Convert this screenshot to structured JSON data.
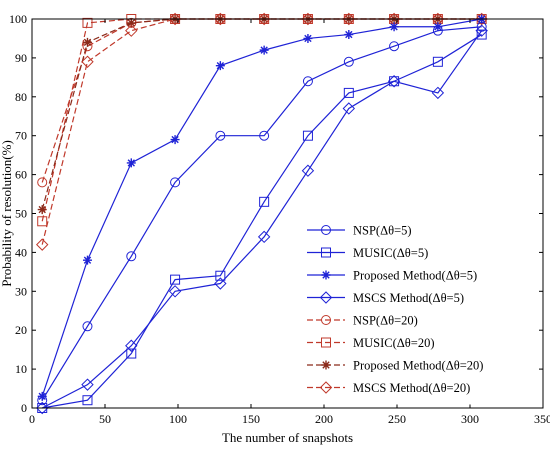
{
  "chart_data": {
    "type": "line",
    "xlabel": "The number of snapshots",
    "ylabel": "Probability of resolution(%)",
    "xlim": [
      0,
      350
    ],
    "ylim": [
      0,
      100
    ],
    "xticks": [
      0,
      50,
      100,
      150,
      200,
      250,
      300,
      350
    ],
    "yticks": [
      0,
      10,
      20,
      30,
      40,
      50,
      60,
      70,
      80,
      90,
      100
    ],
    "grid": false,
    "legend_position": "bottom-right",
    "x": [
      7,
      38,
      68,
      98,
      129,
      159,
      189,
      217,
      248,
      278,
      308
    ],
    "series": [
      {
        "name": "NSP(Δθ=5)",
        "color": "#1f23d6",
        "marker": "circle",
        "dash": false,
        "values": [
          2,
          21,
          39,
          58,
          70,
          70,
          84,
          89,
          93,
          97,
          98
        ]
      },
      {
        "name": "MUSIC(Δθ=5)",
        "color": "#1f23d6",
        "marker": "square",
        "dash": false,
        "values": [
          0,
          2,
          14,
          33,
          34,
          53,
          70,
          81,
          84,
          89,
          96
        ]
      },
      {
        "name": "Proposed Method(Δθ=5)",
        "color": "#1f23d6",
        "marker": "star",
        "dash": false,
        "values": [
          3,
          38,
          63,
          69,
          88,
          92,
          95,
          96,
          98,
          98,
          100
        ]
      },
      {
        "name": "MSCS Method(Δθ=5)",
        "color": "#1f23d6",
        "marker": "diamond",
        "dash": false,
        "values": [
          0,
          6,
          16,
          30,
          32,
          44,
          61,
          77,
          84,
          81,
          97
        ]
      },
      {
        "name": "NSP(Δθ=20)",
        "color": "#c0392b",
        "marker": "circle",
        "dash": true,
        "values": [
          58,
          93,
          99,
          100,
          100,
          100,
          100,
          100,
          100,
          100,
          100
        ]
      },
      {
        "name": "MUSIC(Δθ=20)",
        "color": "#c0392b",
        "marker": "square",
        "dash": true,
        "values": [
          48,
          99,
          100,
          100,
          100,
          100,
          100,
          100,
          100,
          100,
          100
        ]
      },
      {
        "name": "Proposed Method(Δθ=20)",
        "color": "#8b2a1a",
        "marker": "star",
        "dash": true,
        "values": [
          51,
          94,
          99,
          100,
          100,
          100,
          100,
          100,
          100,
          100,
          100
        ]
      },
      {
        "name": "MSCS Method(Δθ=20)",
        "color": "#c0392b",
        "marker": "diamond",
        "dash": true,
        "values": [
          42,
          89,
          97,
          100,
          100,
          100,
          100,
          100,
          100,
          100,
          100
        ]
      }
    ]
  }
}
